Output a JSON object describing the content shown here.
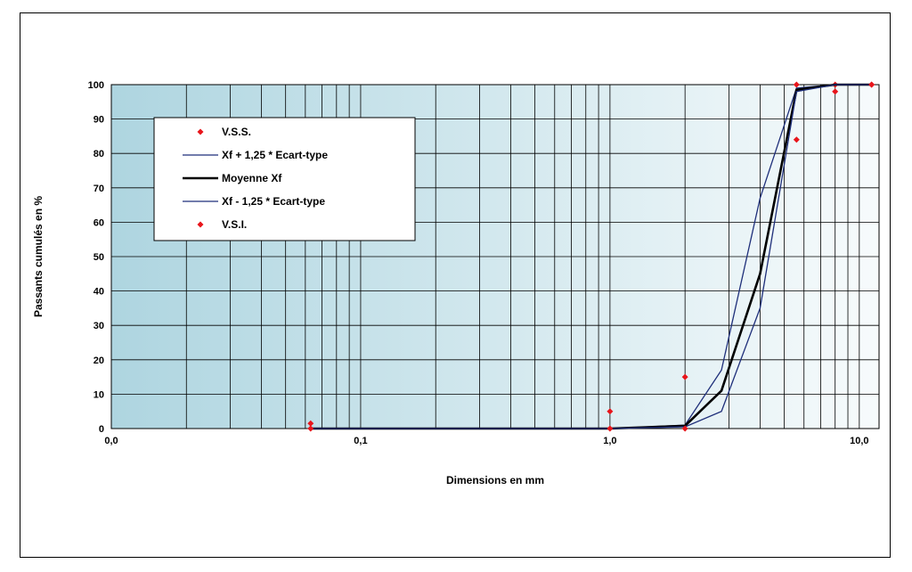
{
  "chart_data": {
    "type": "line",
    "xlabel": "Dimensions en mm",
    "ylabel": "Passants cumulés en %",
    "x_scale": "log",
    "xlim": [
      0.01,
      12
    ],
    "ylim": [
      0,
      100
    ],
    "y_ticks": [
      "0",
      "10",
      "20",
      "30",
      "40",
      "50",
      "60",
      "70",
      "80",
      "90",
      "100"
    ],
    "x_tick_labels": [
      {
        "value": 0.01,
        "label": "0,0"
      },
      {
        "value": 0.1,
        "label": "0,1"
      },
      {
        "value": 1,
        "label": "1,0"
      },
      {
        "value": 10,
        "label": "10,0"
      }
    ],
    "grid": true,
    "legend_placement": "upper-left",
    "series": [
      {
        "name": "V.S.S.",
        "kind": "marker",
        "color": "#e8151b",
        "points": [
          [
            0.063,
            1.5
          ],
          [
            1,
            5
          ],
          [
            2,
            15
          ],
          [
            5.6,
            100
          ],
          [
            8,
            100
          ],
          [
            11.2,
            100
          ]
        ]
      },
      {
        "name": "Xf + 1,25 * Ecart-type",
        "kind": "line",
        "color": "#1f2f7a",
        "points": [
          [
            0.063,
            0
          ],
          [
            1,
            0
          ],
          [
            2,
            1
          ],
          [
            2.8,
            17
          ],
          [
            4,
            67
          ],
          [
            5.6,
            99
          ],
          [
            8,
            100
          ],
          [
            11.2,
            100
          ]
        ]
      },
      {
        "name": "Moyenne Xf",
        "kind": "line",
        "color": "#000000",
        "points": [
          [
            0.063,
            0
          ],
          [
            1,
            0
          ],
          [
            2,
            0.8
          ],
          [
            2.8,
            11
          ],
          [
            4,
            45
          ],
          [
            5.6,
            98.5
          ],
          [
            8,
            100
          ],
          [
            11.2,
            100
          ]
        ]
      },
      {
        "name": "Xf - 1,25 * Ecart-type",
        "kind": "line",
        "color": "#1f2f7a",
        "points": [
          [
            0.063,
            0
          ],
          [
            1,
            0
          ],
          [
            2,
            0.5
          ],
          [
            2.8,
            5
          ],
          [
            4,
            35
          ],
          [
            5.6,
            98
          ],
          [
            8,
            100
          ],
          [
            11.2,
            100
          ]
        ]
      },
      {
        "name": "V.S.I.",
        "kind": "marker",
        "color": "#e8151b",
        "points": [
          [
            0.063,
            0
          ],
          [
            1,
            0
          ],
          [
            2,
            0
          ],
          [
            5.6,
            84
          ],
          [
            8,
            98
          ],
          [
            11.2,
            100
          ]
        ]
      }
    ]
  }
}
